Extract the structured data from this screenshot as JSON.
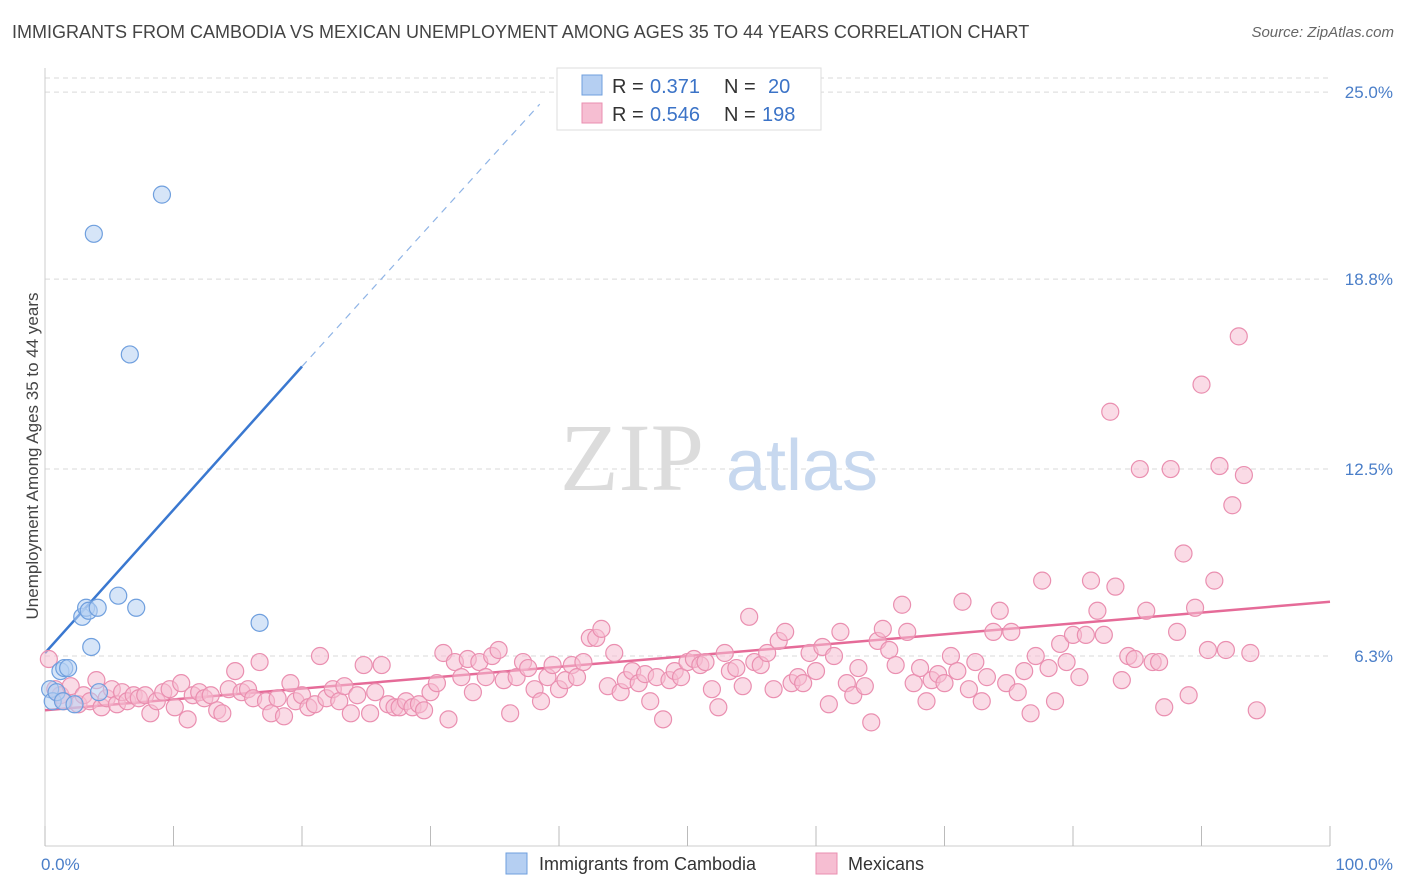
{
  "title": "IMMIGRANTS FROM CAMBODIA VS MEXICAN UNEMPLOYMENT AMONG AGES 35 TO 44 YEARS CORRELATION CHART",
  "source": "Source: ZipAtlas.com",
  "watermark": {
    "zip": "ZIP",
    "atlas": "atlas"
  },
  "colors": {
    "blue": "#3a78d0",
    "blue_fill": "#b5cff2",
    "blue_edge": "#6f9fde",
    "pink": "#e56b98",
    "pink_fill": "#f6bed2",
    "pink_edge": "#ea8fb0",
    "grid": "#d9d9d9",
    "tick_text": "#4a7ec8"
  },
  "legend": {
    "rows": [
      {
        "r_label": "R = ",
        "r_value": "0.371",
        "n_label": "N = ",
        "n_value": "20",
        "color": "blue"
      },
      {
        "r_label": "R = ",
        "r_value": "0.546",
        "n_label": "N = ",
        "n_value": "198",
        "color": "pink"
      }
    ]
  },
  "bottom_legend": [
    {
      "name": "Immigrants from Cambodia",
      "color": "blue"
    },
    {
      "name": "Mexicans",
      "color": "pink"
    }
  ],
  "chart_data": {
    "type": "scatter",
    "xlabel": "",
    "ylabel": "Unemployment Among Ages 35 to 44 years",
    "xlim": [
      0,
      100
    ],
    "ylim": [
      0,
      25.6
    ],
    "x_tick_labels": [
      {
        "value": 0,
        "label": "0.0%"
      },
      {
        "value": 100,
        "label": "100.0%"
      }
    ],
    "x_minor_ticks": [
      0,
      10,
      20,
      30,
      40,
      50,
      60,
      70,
      80,
      90,
      100
    ],
    "y_tick_labels": [
      {
        "value": 6.3,
        "label": "6.3%"
      },
      {
        "value": 12.5,
        "label": "12.5%"
      },
      {
        "value": 18.8,
        "label": "18.8%"
      },
      {
        "value": 25.0,
        "label": "25.0%"
      }
    ],
    "grid": true,
    "legend_position": "top-center",
    "series": [
      {
        "name": "Immigrants from Cambodia",
        "color": "blue",
        "points": [
          [
            0.4,
            5.2
          ],
          [
            0.6,
            4.8
          ],
          [
            0.9,
            5.1
          ],
          [
            1.2,
            5.8
          ],
          [
            1.5,
            5.9
          ],
          [
            1.8,
            5.9
          ],
          [
            1.4,
            4.8
          ],
          [
            2.3,
            4.7
          ],
          [
            2.9,
            7.6
          ],
          [
            3.2,
            7.9
          ],
          [
            3.6,
            6.6
          ],
          [
            3.4,
            7.8
          ],
          [
            3.8,
            20.3
          ],
          [
            4.1,
            7.9
          ],
          [
            4.2,
            5.1
          ],
          [
            5.7,
            8.3
          ],
          [
            6.6,
            16.3
          ],
          [
            7.1,
            7.9
          ],
          [
            9.1,
            21.6
          ],
          [
            16.7,
            7.4
          ]
        ],
        "trend": {
          "x0": 0,
          "y0": 6.4,
          "x1": 20,
          "y1": 15.9,
          "dash_to_x": 38.5,
          "dash_to_y": 24.6
        }
      },
      {
        "name": "Mexicans",
        "color": "pink",
        "points": [
          [
            0.3,
            6.2
          ],
          [
            0.8,
            5.2
          ],
          [
            1.2,
            5.0
          ],
          [
            1.5,
            4.8
          ],
          [
            2.0,
            5.3
          ],
          [
            2.6,
            4.7
          ],
          [
            3.0,
            5.0
          ],
          [
            3.5,
            4.8
          ],
          [
            4.0,
            5.5
          ],
          [
            4.4,
            4.6
          ],
          [
            4.8,
            4.9
          ],
          [
            5.2,
            5.2
          ],
          [
            5.6,
            4.7
          ],
          [
            6.0,
            5.1
          ],
          [
            6.4,
            4.8
          ],
          [
            6.9,
            5.0
          ],
          [
            7.3,
            4.9
          ],
          [
            7.8,
            5.0
          ],
          [
            8.2,
            4.4
          ],
          [
            8.7,
            4.8
          ],
          [
            9.2,
            5.1
          ],
          [
            9.7,
            5.2
          ],
          [
            10.1,
            4.6
          ],
          [
            10.6,
            5.4
          ],
          [
            11.1,
            4.2
          ],
          [
            11.5,
            5.0
          ],
          [
            12.0,
            5.1
          ],
          [
            12.4,
            4.9
          ],
          [
            12.9,
            5.0
          ],
          [
            13.4,
            4.5
          ],
          [
            13.8,
            4.4
          ],
          [
            14.3,
            5.2
          ],
          [
            14.8,
            5.8
          ],
          [
            15.3,
            5.1
          ],
          [
            15.8,
            5.2
          ],
          [
            16.2,
            4.9
          ],
          [
            16.7,
            6.1
          ],
          [
            17.2,
            4.8
          ],
          [
            17.6,
            4.4
          ],
          [
            18.1,
            4.9
          ],
          [
            18.6,
            4.3
          ],
          [
            19.1,
            5.4
          ],
          [
            19.5,
            4.8
          ],
          [
            20.0,
            5.0
          ],
          [
            20.5,
            4.6
          ],
          [
            21.0,
            4.7
          ],
          [
            21.4,
            6.3
          ],
          [
            21.9,
            4.9
          ],
          [
            22.4,
            5.2
          ],
          [
            22.9,
            4.8
          ],
          [
            23.3,
            5.3
          ],
          [
            23.8,
            4.4
          ],
          [
            24.3,
            5.0
          ],
          [
            24.8,
            6.0
          ],
          [
            25.3,
            4.4
          ],
          [
            25.7,
            5.1
          ],
          [
            26.2,
            6.0
          ],
          [
            26.7,
            4.7
          ],
          [
            27.2,
            4.6
          ],
          [
            27.6,
            4.6
          ],
          [
            28.1,
            4.8
          ],
          [
            28.6,
            4.6
          ],
          [
            29.1,
            4.7
          ],
          [
            29.5,
            4.5
          ],
          [
            30.0,
            5.1
          ],
          [
            30.5,
            5.4
          ],
          [
            31.0,
            6.4
          ],
          [
            31.4,
            4.2
          ],
          [
            31.9,
            6.1
          ],
          [
            32.4,
            5.6
          ],
          [
            32.9,
            6.2
          ],
          [
            33.3,
            5.1
          ],
          [
            33.8,
            6.1
          ],
          [
            34.3,
            5.6
          ],
          [
            34.8,
            6.3
          ],
          [
            35.3,
            6.5
          ],
          [
            35.7,
            5.5
          ],
          [
            36.2,
            4.4
          ],
          [
            36.7,
            5.6
          ],
          [
            37.2,
            6.1
          ],
          [
            37.6,
            5.9
          ],
          [
            38.1,
            5.2
          ],
          [
            38.6,
            4.8
          ],
          [
            39.1,
            5.6
          ],
          [
            39.5,
            6.0
          ],
          [
            40.0,
            5.2
          ],
          [
            40.5,
            5.5
          ],
          [
            41.0,
            6.0
          ],
          [
            41.4,
            5.6
          ],
          [
            41.9,
            6.1
          ],
          [
            42.4,
            6.9
          ],
          [
            42.9,
            6.9
          ],
          [
            43.3,
            7.2
          ],
          [
            43.8,
            5.3
          ],
          [
            44.3,
            6.4
          ],
          [
            44.8,
            5.1
          ],
          [
            45.2,
            5.5
          ],
          [
            45.7,
            5.8
          ],
          [
            46.2,
            5.4
          ],
          [
            46.7,
            5.7
          ],
          [
            47.1,
            4.8
          ],
          [
            47.6,
            5.6
          ],
          [
            48.1,
            4.2
          ],
          [
            48.6,
            5.5
          ],
          [
            49.0,
            5.8
          ],
          [
            49.5,
            5.6
          ],
          [
            50.0,
            6.1
          ],
          [
            50.5,
            6.2
          ],
          [
            51.0,
            6.0
          ],
          [
            51.4,
            6.1
          ],
          [
            51.9,
            5.2
          ],
          [
            52.4,
            4.6
          ],
          [
            52.9,
            6.4
          ],
          [
            53.3,
            5.8
          ],
          [
            53.8,
            5.9
          ],
          [
            54.3,
            5.3
          ],
          [
            54.8,
            7.6
          ],
          [
            55.2,
            6.1
          ],
          [
            55.7,
            6.0
          ],
          [
            56.2,
            6.4
          ],
          [
            56.7,
            5.2
          ],
          [
            57.1,
            6.8
          ],
          [
            57.6,
            7.1
          ],
          [
            58.1,
            5.4
          ],
          [
            58.6,
            5.6
          ],
          [
            59.0,
            5.4
          ],
          [
            59.5,
            6.4
          ],
          [
            60.0,
            5.8
          ],
          [
            60.5,
            6.6
          ],
          [
            61.0,
            4.7
          ],
          [
            61.4,
            6.3
          ],
          [
            61.9,
            7.1
          ],
          [
            62.4,
            5.4
          ],
          [
            62.9,
            5.0
          ],
          [
            63.3,
            5.9
          ],
          [
            63.8,
            5.3
          ],
          [
            64.3,
            4.1
          ],
          [
            64.8,
            6.8
          ],
          [
            65.2,
            7.2
          ],
          [
            65.7,
            6.5
          ],
          [
            66.2,
            6.0
          ],
          [
            66.7,
            8.0
          ],
          [
            67.1,
            7.1
          ],
          [
            67.6,
            5.4
          ],
          [
            68.1,
            5.9
          ],
          [
            68.6,
            4.8
          ],
          [
            69.0,
            5.5
          ],
          [
            69.5,
            5.7
          ],
          [
            70.0,
            5.4
          ],
          [
            70.5,
            6.3
          ],
          [
            71.0,
            5.8
          ],
          [
            71.4,
            8.1
          ],
          [
            71.9,
            5.2
          ],
          [
            72.4,
            6.1
          ],
          [
            72.9,
            4.8
          ],
          [
            73.3,
            5.6
          ],
          [
            73.8,
            7.1
          ],
          [
            74.3,
            7.8
          ],
          [
            74.8,
            5.4
          ],
          [
            75.2,
            7.1
          ],
          [
            75.7,
            5.1
          ],
          [
            76.2,
            5.8
          ],
          [
            76.7,
            4.4
          ],
          [
            77.1,
            6.3
          ],
          [
            77.6,
            8.8
          ],
          [
            78.1,
            5.9
          ],
          [
            78.6,
            4.8
          ],
          [
            79.0,
            6.7
          ],
          [
            79.5,
            6.1
          ],
          [
            80.0,
            7.0
          ],
          [
            80.5,
            5.6
          ],
          [
            81.0,
            7.0
          ],
          [
            81.4,
            8.8
          ],
          [
            81.9,
            7.8
          ],
          [
            82.4,
            7.0
          ],
          [
            82.9,
            14.4
          ],
          [
            83.3,
            8.6
          ],
          [
            83.8,
            5.5
          ],
          [
            84.3,
            6.3
          ],
          [
            84.8,
            6.2
          ],
          [
            85.2,
            12.5
          ],
          [
            85.7,
            7.8
          ],
          [
            86.2,
            6.1
          ],
          [
            86.7,
            6.1
          ],
          [
            87.1,
            4.6
          ],
          [
            87.6,
            12.5
          ],
          [
            88.1,
            7.1
          ],
          [
            88.6,
            9.7
          ],
          [
            89.0,
            5.0
          ],
          [
            89.5,
            7.9
          ],
          [
            90.0,
            15.3
          ],
          [
            90.5,
            6.5
          ],
          [
            91.0,
            8.8
          ],
          [
            91.4,
            12.6
          ],
          [
            91.9,
            6.5
          ],
          [
            92.4,
            11.3
          ],
          [
            92.9,
            16.9
          ],
          [
            93.3,
            12.3
          ],
          [
            93.8,
            6.4
          ],
          [
            94.3,
            4.5
          ]
        ],
        "trend": {
          "x0": 0,
          "y0": 4.5,
          "x1": 100,
          "y1": 8.1
        }
      }
    ]
  }
}
